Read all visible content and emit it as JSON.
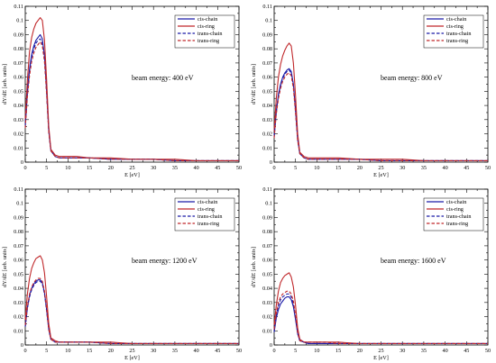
{
  "chart_data": [
    {
      "type": "line",
      "annotation": "beam energy: 400 eV",
      "xlabel": "E [eV]",
      "ylabel": "dY/dE [arb. units]",
      "xlim": [
        0,
        50
      ],
      "ylim": [
        0,
        0.11
      ],
      "xticks": [
        0,
        5,
        10,
        15,
        20,
        25,
        30,
        35,
        40,
        45,
        50
      ],
      "yticks": [
        0,
        0.01,
        0.02,
        0.03,
        0.04,
        0.05,
        0.06,
        0.07,
        0.08,
        0.09,
        0.1,
        0.11
      ],
      "legend_position": "top-right",
      "x": [
        0,
        0.5,
        1,
        1.5,
        2,
        2.5,
        3,
        3.5,
        4,
        4.5,
        5,
        5.5,
        6,
        7,
        8,
        10,
        12,
        15,
        20,
        25,
        30,
        35,
        40,
        45,
        50
      ],
      "series": [
        {
          "name": "cis-chain",
          "color": "#1a1aa6",
          "dash": "solid",
          "values": [
            0.026,
            0.05,
            0.066,
            0.076,
            0.082,
            0.086,
            0.088,
            0.09,
            0.087,
            0.075,
            0.05,
            0.022,
            0.008,
            0.004,
            0.003,
            0.003,
            0.003,
            0.003,
            0.002,
            0.002,
            0.002,
            0.001,
            0.001,
            0.001,
            0.001
          ]
        },
        {
          "name": "cis-ring",
          "color": "#c0282b",
          "dash": "solid",
          "values": [
            0.03,
            0.058,
            0.078,
            0.088,
            0.094,
            0.098,
            0.1,
            0.102,
            0.1,
            0.086,
            0.058,
            0.025,
            0.009,
            0.005,
            0.004,
            0.004,
            0.004,
            0.003,
            0.003,
            0.002,
            0.002,
            0.002,
            0.001,
            0.001,
            0.001
          ]
        },
        {
          "name": "trans-chain",
          "color": "#1a1aa6",
          "dash": "dashed",
          "values": [
            0.025,
            0.048,
            0.064,
            0.074,
            0.08,
            0.084,
            0.086,
            0.087,
            0.084,
            0.073,
            0.049,
            0.022,
            0.008,
            0.004,
            0.003,
            0.003,
            0.003,
            0.003,
            0.002,
            0.002,
            0.002,
            0.001,
            0.001,
            0.001,
            0.001
          ]
        },
        {
          "name": "trans-ring",
          "color": "#c0282b",
          "dash": "dashed",
          "values": [
            0.024,
            0.046,
            0.061,
            0.071,
            0.077,
            0.081,
            0.083,
            0.085,
            0.082,
            0.071,
            0.048,
            0.021,
            0.008,
            0.004,
            0.003,
            0.003,
            0.003,
            0.003,
            0.002,
            0.002,
            0.002,
            0.001,
            0.001,
            0.001,
            0.001
          ]
        }
      ]
    },
    {
      "type": "line",
      "annotation": "beam energy: 800 eV",
      "xlabel": "E [eV]",
      "ylabel": "dY/dE [arb. units]",
      "xlim": [
        0,
        50
      ],
      "ylim": [
        0,
        0.11
      ],
      "xticks": [
        0,
        5,
        10,
        15,
        20,
        25,
        30,
        35,
        40,
        45,
        50
      ],
      "yticks": [
        0,
        0.01,
        0.02,
        0.03,
        0.04,
        0.05,
        0.06,
        0.07,
        0.08,
        0.09,
        0.1,
        0.11
      ],
      "legend_position": "top-right",
      "x": [
        0,
        0.5,
        1,
        1.5,
        2,
        2.5,
        3,
        3.5,
        4,
        4.5,
        5,
        5.5,
        6,
        7,
        8,
        10,
        12,
        15,
        20,
        25,
        30,
        35,
        40,
        45,
        50
      ],
      "series": [
        {
          "name": "cis-chain",
          "color": "#1a1aa6",
          "dash": "solid",
          "values": [
            0.018,
            0.036,
            0.048,
            0.055,
            0.06,
            0.063,
            0.065,
            0.066,
            0.064,
            0.055,
            0.037,
            0.016,
            0.006,
            0.003,
            0.002,
            0.002,
            0.002,
            0.002,
            0.002,
            0.001,
            0.001,
            0.001,
            0.001,
            0.001,
            0.001
          ]
        },
        {
          "name": "cis-ring",
          "color": "#c0282b",
          "dash": "solid",
          "values": [
            0.022,
            0.045,
            0.06,
            0.069,
            0.075,
            0.079,
            0.082,
            0.084,
            0.082,
            0.07,
            0.047,
            0.02,
            0.007,
            0.004,
            0.003,
            0.003,
            0.003,
            0.003,
            0.002,
            0.002,
            0.002,
            0.001,
            0.001,
            0.001,
            0.001
          ]
        },
        {
          "name": "trans-chain",
          "color": "#1a1aa6",
          "dash": "dashed",
          "values": [
            0.018,
            0.035,
            0.047,
            0.054,
            0.059,
            0.062,
            0.064,
            0.065,
            0.063,
            0.054,
            0.036,
            0.016,
            0.006,
            0.003,
            0.002,
            0.002,
            0.002,
            0.002,
            0.002,
            0.001,
            0.001,
            0.001,
            0.001,
            0.001,
            0.001
          ]
        },
        {
          "name": "trans-ring",
          "color": "#c0282b",
          "dash": "dashed",
          "values": [
            0.017,
            0.034,
            0.045,
            0.052,
            0.057,
            0.06,
            0.062,
            0.063,
            0.061,
            0.052,
            0.035,
            0.015,
            0.006,
            0.003,
            0.002,
            0.002,
            0.002,
            0.002,
            0.002,
            0.001,
            0.001,
            0.001,
            0.001,
            0.001,
            0.001
          ]
        }
      ]
    },
    {
      "type": "line",
      "annotation": "beam energy: 1200 eV",
      "xlabel": "E [eV]",
      "ylabel": "dY/dE [arb. units]",
      "xlim": [
        0,
        50
      ],
      "ylim": [
        0,
        0.11
      ],
      "xticks": [
        0,
        5,
        10,
        15,
        20,
        25,
        30,
        35,
        40,
        45,
        50
      ],
      "yticks": [
        0,
        0.01,
        0.02,
        0.03,
        0.04,
        0.05,
        0.06,
        0.07,
        0.08,
        0.09,
        0.1,
        0.11
      ],
      "legend_position": "top-right",
      "x": [
        0,
        0.5,
        1,
        1.5,
        2,
        2.5,
        3,
        3.5,
        4,
        4.5,
        5,
        5.5,
        6,
        7,
        8,
        10,
        12,
        15,
        20,
        25,
        30,
        35,
        40,
        45,
        50
      ],
      "series": [
        {
          "name": "cis-chain",
          "color": "#1a1aa6",
          "dash": "solid",
          "values": [
            0.013,
            0.026,
            0.035,
            0.04,
            0.043,
            0.045,
            0.046,
            0.046,
            0.044,
            0.037,
            0.025,
            0.011,
            0.004,
            0.002,
            0.002,
            0.002,
            0.002,
            0.002,
            0.001,
            0.001,
            0.001,
            0.001,
            0.001,
            0.001,
            0.001
          ]
        },
        {
          "name": "cis-ring",
          "color": "#c0282b",
          "dash": "solid",
          "values": [
            0.018,
            0.036,
            0.047,
            0.054,
            0.058,
            0.061,
            0.062,
            0.063,
            0.06,
            0.051,
            0.034,
            0.015,
            0.005,
            0.003,
            0.002,
            0.002,
            0.002,
            0.002,
            0.002,
            0.001,
            0.001,
            0.001,
            0.001,
            0.001,
            0.001
          ]
        },
        {
          "name": "trans-chain",
          "color": "#1a1aa6",
          "dash": "dashed",
          "values": [
            0.013,
            0.026,
            0.034,
            0.039,
            0.042,
            0.044,
            0.045,
            0.045,
            0.043,
            0.036,
            0.024,
            0.011,
            0.004,
            0.002,
            0.002,
            0.002,
            0.002,
            0.002,
            0.001,
            0.001,
            0.001,
            0.001,
            0.001,
            0.001,
            0.001
          ]
        },
        {
          "name": "trans-ring",
          "color": "#c0282b",
          "dash": "dashed",
          "values": [
            0.014,
            0.027,
            0.036,
            0.041,
            0.044,
            0.046,
            0.047,
            0.047,
            0.045,
            0.038,
            0.026,
            0.011,
            0.004,
            0.002,
            0.002,
            0.002,
            0.002,
            0.002,
            0.001,
            0.001,
            0.001,
            0.001,
            0.001,
            0.001,
            0.001
          ]
        }
      ]
    },
    {
      "type": "line",
      "annotation": "beam energy: 1600 eV",
      "xlabel": "E [eV]",
      "ylabel": "dY/dE [arb. units]",
      "xlim": [
        0,
        50
      ],
      "ylim": [
        0,
        0.11
      ],
      "xticks": [
        0,
        5,
        10,
        15,
        20,
        25,
        30,
        35,
        40,
        45,
        50
      ],
      "yticks": [
        0,
        0.01,
        0.02,
        0.03,
        0.04,
        0.05,
        0.06,
        0.07,
        0.08,
        0.09,
        0.1,
        0.11
      ],
      "legend_position": "top-right",
      "x": [
        0,
        0.5,
        1,
        1.5,
        2,
        2.5,
        3,
        3.5,
        4,
        4.5,
        5,
        5.5,
        6,
        7,
        8,
        10,
        12,
        15,
        20,
        25,
        30,
        35,
        40,
        45,
        50
      ],
      "series": [
        {
          "name": "cis-chain",
          "color": "#1a1aa6",
          "dash": "solid",
          "values": [
            0.009,
            0.019,
            0.025,
            0.029,
            0.031,
            0.033,
            0.034,
            0.034,
            0.032,
            0.027,
            0.018,
            0.008,
            0.003,
            0.002,
            0.001,
            0.001,
            0.001,
            0.001,
            0.001,
            0.001,
            0.001,
            0.001,
            0.001,
            0.001,
            0.001
          ]
        },
        {
          "name": "cis-ring",
          "color": "#c0282b",
          "dash": "solid",
          "values": [
            0.014,
            0.028,
            0.038,
            0.044,
            0.047,
            0.049,
            0.05,
            0.051,
            0.048,
            0.041,
            0.028,
            0.012,
            0.004,
            0.002,
            0.002,
            0.002,
            0.002,
            0.002,
            0.001,
            0.001,
            0.001,
            0.001,
            0.001,
            0.001,
            0.001
          ]
        },
        {
          "name": "trans-chain",
          "color": "#1a1aa6",
          "dash": "dashed",
          "values": [
            0.01,
            0.021,
            0.028,
            0.032,
            0.034,
            0.035,
            0.036,
            0.036,
            0.034,
            0.029,
            0.019,
            0.008,
            0.003,
            0.002,
            0.001,
            0.001,
            0.001,
            0.001,
            0.001,
            0.001,
            0.001,
            0.001,
            0.001,
            0.001,
            0.001
          ]
        },
        {
          "name": "trans-ring",
          "color": "#c0282b",
          "dash": "dashed",
          "values": [
            0.011,
            0.022,
            0.03,
            0.034,
            0.036,
            0.037,
            0.038,
            0.038,
            0.036,
            0.031,
            0.021,
            0.009,
            0.003,
            0.002,
            0.002,
            0.002,
            0.002,
            0.001,
            0.001,
            0.001,
            0.001,
            0.001,
            0.001,
            0.001,
            0.001
          ]
        }
      ]
    }
  ]
}
